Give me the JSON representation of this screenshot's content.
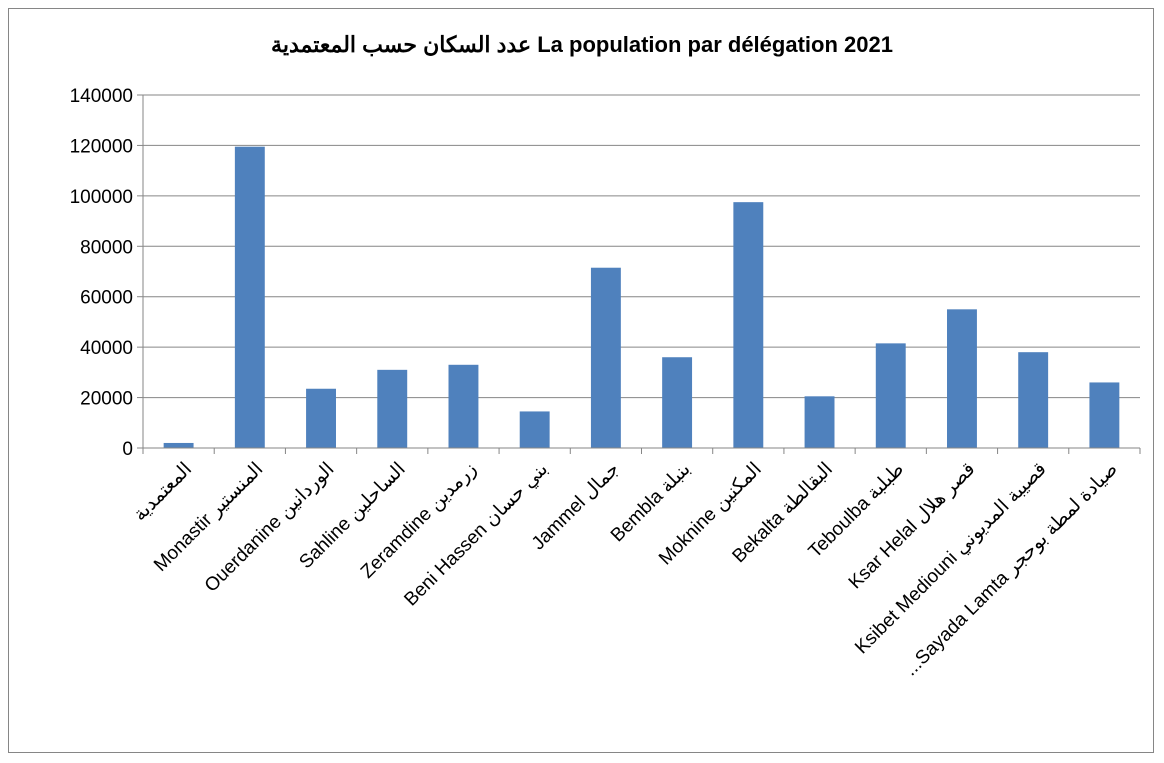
{
  "chart_data": {
    "type": "bar",
    "title": "عدد السكان حسب المعتمدية La population par délégation  2021",
    "categories": [
      "المعتمدية",
      "Monastir   المنستير",
      "Ouerdanine   الوردانين",
      "Sahline   الساحلين",
      "Zeramdine   زرمدين",
      "Beni Hassen   بني حسان",
      "Jammel   جمال",
      "Bembla   بنبلة",
      "Moknine   المكنين",
      "Bekalta   البقالطة",
      "Teboulba   طبلبة",
      "Ksar Helal   قصر هلال",
      "Ksibet Mediouni   قصيبة المديوني",
      "...Sayada Lamta   صيادة لمطة بوحجر"
    ],
    "values": [
      2000,
      119500,
      23500,
      31000,
      33000,
      14500,
      71500,
      36000,
      97500,
      20500,
      41500,
      55000,
      38000,
      26000
    ],
    "ylim": [
      0,
      140000
    ],
    "yticks": [
      "0",
      "20000",
      "40000",
      "60000",
      "80000",
      "100000",
      "120000",
      "140000"
    ],
    "xlabel": "",
    "ylabel": "",
    "grid": true,
    "bar_color": "#4F81BD"
  }
}
